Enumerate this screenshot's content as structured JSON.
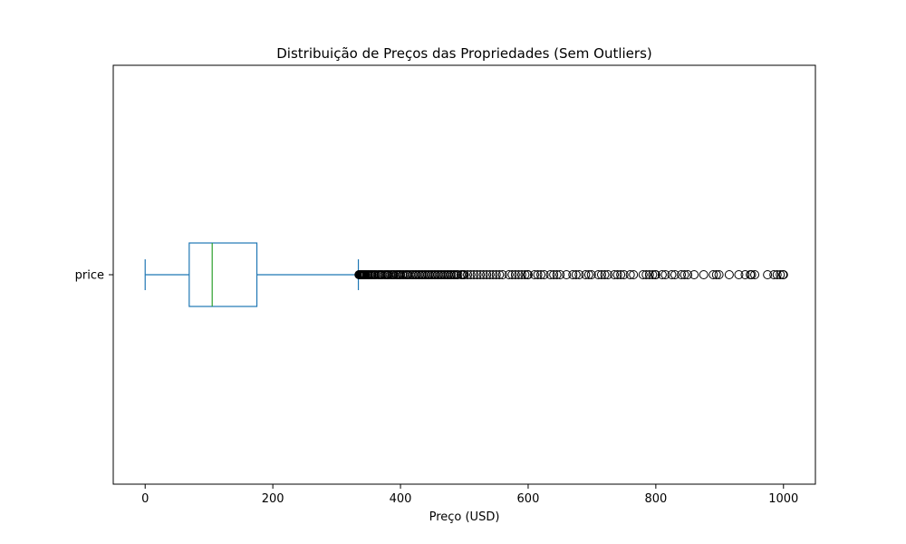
{
  "chart_data": {
    "type": "boxplot",
    "orientation": "horizontal",
    "title": "Distribuição de Preços das Propriedades (Sem Outliers)",
    "xlabel": "Preço (USD)",
    "ylabel": "",
    "xlim": [
      -50,
      1050
    ],
    "xticks": [
      0,
      200,
      400,
      600,
      800,
      1000
    ],
    "xtick_labels": [
      "0",
      "200",
      "400",
      "600",
      "800",
      "1000"
    ],
    "grid": false,
    "series": [
      {
        "name": "price",
        "whisker_low": 0,
        "q1": 69,
        "median": 105,
        "q3": 175,
        "whisker_high": 334,
        "outliers": [
          335,
          336,
          337,
          338,
          339,
          340,
          341,
          342,
          343,
          344,
          345,
          347,
          349,
          350,
          352,
          354,
          355,
          357,
          359,
          360,
          362,
          365,
          367,
          369,
          370,
          372,
          375,
          377,
          379,
          380,
          382,
          385,
          387,
          389,
          390,
          393,
          395,
          397,
          399,
          400,
          403,
          405,
          408,
          410,
          412,
          415,
          418,
          420,
          423,
          425,
          428,
          430,
          433,
          435,
          438,
          440,
          443,
          445,
          448,
          450,
          453,
          455,
          458,
          460,
          463,
          465,
          468,
          470,
          473,
          475,
          478,
          480,
          483,
          485,
          488,
          490,
          495,
          497,
          499,
          500,
          505,
          510,
          515,
          520,
          525,
          530,
          535,
          540,
          545,
          550,
          555,
          560,
          570,
          575,
          580,
          585,
          590,
          595,
          599,
          600,
          610,
          615,
          620,
          625,
          635,
          640,
          645,
          650,
          660,
          670,
          675,
          680,
          690,
          695,
          699,
          710,
          715,
          720,
          725,
          735,
          740,
          745,
          750,
          760,
          765,
          780,
          785,
          790,
          795,
          799,
          800,
          810,
          815,
          825,
          830,
          840,
          845,
          850,
          860,
          875,
          890,
          895,
          899,
          915,
          930,
          940,
          948,
          950,
          955,
          975,
          985,
          990,
          995,
          999,
          1000
        ]
      }
    ],
    "colors": {
      "box": "#1f77b4",
      "median": "#2ca02c",
      "outlier_edge": "#000000",
      "frame": "#000000"
    }
  }
}
